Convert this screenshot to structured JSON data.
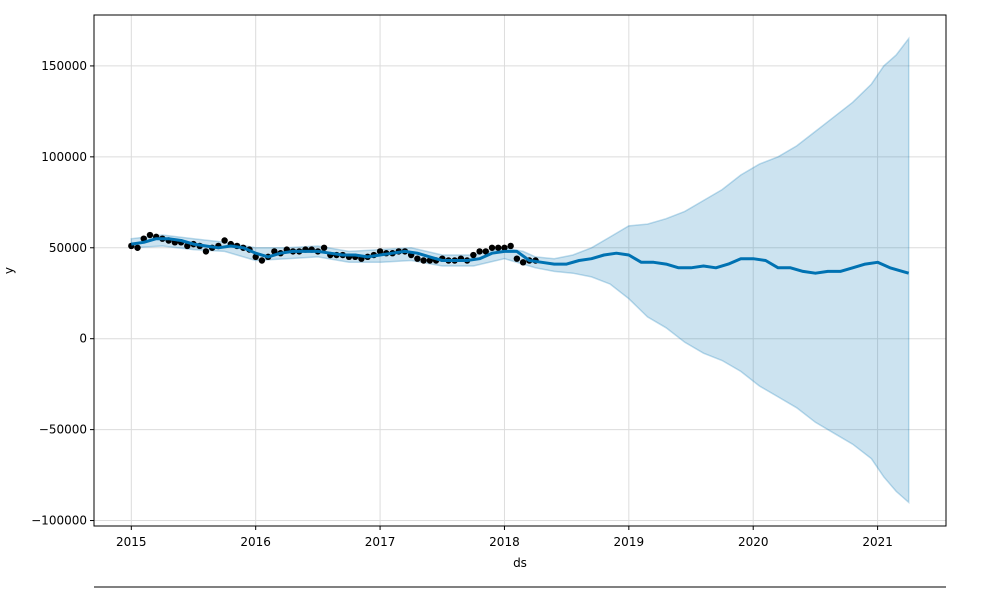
{
  "chart_data": {
    "type": "line",
    "title": "",
    "xlabel": "ds",
    "ylabel": "y",
    "xlim": [
      2014.7,
      2021.55
    ],
    "ylim": [
      -103000,
      178000
    ],
    "grid": true,
    "x_ticks": [
      2015,
      2016,
      2017,
      2018,
      2019,
      2020,
      2021
    ],
    "x_tick_labels": [
      "2015",
      "2016",
      "2017",
      "2018",
      "2019",
      "2020",
      "2021"
    ],
    "y_ticks": [
      -100000,
      -50000,
      0,
      50000,
      100000,
      150000
    ],
    "y_tick_labels": [
      "−100000",
      "−50000",
      "0",
      "50000",
      "100000",
      "150000"
    ],
    "colors": {
      "observed": "#000000",
      "forecast": "#0072B2",
      "interval_fill": "#0072B2",
      "grid": "#dcdcdc"
    },
    "series": [
      {
        "kind": "scatter",
        "x": [
          2015.0,
          2015.05,
          2015.1,
          2015.15,
          2015.2,
          2015.25,
          2015.3,
          2015.35,
          2015.4,
          2015.45,
          2015.5,
          2015.55,
          2015.6,
          2015.65,
          2015.7,
          2015.75,
          2015.8,
          2015.85,
          2015.9,
          2015.95,
          2016.0,
          2016.05,
          2016.1,
          2016.15,
          2016.2,
          2016.25,
          2016.3,
          2016.35,
          2016.4,
          2016.45,
          2016.5,
          2016.55,
          2016.6,
          2016.65,
          2016.7,
          2016.75,
          2016.8,
          2016.85,
          2016.9,
          2016.95,
          2017.0,
          2017.05,
          2017.1,
          2017.15,
          2017.2,
          2017.25,
          2017.3,
          2017.35,
          2017.4,
          2017.45,
          2017.5,
          2017.55,
          2017.6,
          2017.65,
          2017.7,
          2017.75,
          2017.8,
          2017.85,
          2017.9,
          2017.95,
          2018.0,
          2018.05,
          2018.1,
          2018.15,
          2018.2,
          2018.25
        ],
        "y": [
          51000,
          50000,
          55000,
          57000,
          56000,
          55000,
          54000,
          53000,
          53000,
          51000,
          52000,
          51000,
          48000,
          50000,
          51000,
          54000,
          52000,
          51000,
          50000,
          49000,
          45000,
          43000,
          45000,
          48000,
          47000,
          49000,
          48000,
          48000,
          49000,
          49000,
          48000,
          50000,
          46000,
          46000,
          46000,
          45000,
          45000,
          44000,
          45000,
          46000,
          48000,
          47000,
          47000,
          48000,
          48000,
          46000,
          44000,
          43000,
          43000,
          43000,
          44000,
          43000,
          43000,
          44000,
          43000,
          46000,
          48000,
          48000,
          50000,
          50000,
          50000,
          51000,
          44000,
          42000,
          43000,
          43000
        ]
      },
      {
        "kind": "line",
        "x": [
          2015.0,
          2015.1,
          2015.2,
          2015.3,
          2015.4,
          2015.5,
          2015.6,
          2015.7,
          2015.8,
          2015.9,
          2016.0,
          2016.1,
          2016.2,
          2016.3,
          2016.4,
          2016.5,
          2016.6,
          2016.7,
          2016.8,
          2016.9,
          2017.0,
          2017.1,
          2017.2,
          2017.3,
          2017.4,
          2017.5,
          2017.6,
          2017.7,
          2017.8,
          2017.9,
          2018.0,
          2018.1,
          2018.2,
          2018.3,
          2018.4,
          2018.5,
          2018.6,
          2018.7,
          2018.8,
          2018.9,
          2019.0,
          2019.1,
          2019.2,
          2019.3,
          2019.4,
          2019.5,
          2019.6,
          2019.7,
          2019.8,
          2019.9,
          2020.0,
          2020.1,
          2020.2,
          2020.3,
          2020.4,
          2020.5,
          2020.6,
          2020.7,
          2020.8,
          2020.9,
          2021.0,
          2021.1,
          2021.2,
          2021.25
        ],
        "y": [
          52000,
          53000,
          55000,
          55000,
          54000,
          52000,
          51000,
          50000,
          51000,
          50000,
          47000,
          45000,
          47000,
          48000,
          48000,
          48000,
          47000,
          46000,
          46000,
          45000,
          46000,
          47000,
          48000,
          47000,
          45000,
          43000,
          43000,
          43000,
          44000,
          47000,
          48000,
          48000,
          43000,
          42000,
          41000,
          41000,
          43000,
          44000,
          46000,
          47000,
          46000,
          42000,
          42000,
          41000,
          39000,
          39000,
          40000,
          39000,
          41000,
          44000,
          44000,
          43000,
          39000,
          39000,
          37000,
          36000,
          37000,
          37000,
          39000,
          41000,
          42000,
          39000,
          37000,
          36000
        ]
      }
    ],
    "interval": {
      "x": [
        2015.0,
        2015.25,
        2015.5,
        2015.75,
        2016.0,
        2016.25,
        2016.5,
        2016.75,
        2017.0,
        2017.25,
        2017.5,
        2017.75,
        2018.0,
        2018.15,
        2018.25,
        2018.4,
        2018.55,
        2018.7,
        2018.85,
        2019.0,
        2019.15,
        2019.3,
        2019.45,
        2019.6,
        2019.75,
        2019.9,
        2020.05,
        2020.2,
        2020.35,
        2020.5,
        2020.65,
        2020.8,
        2020.95,
        2021.05,
        2021.15,
        2021.25
      ],
      "upper": [
        55000,
        57000,
        55000,
        53000,
        50000,
        50000,
        51000,
        48000,
        49000,
        50000,
        46000,
        46000,
        50000,
        48000,
        45000,
        44000,
        46000,
        50000,
        56000,
        62000,
        63000,
        66000,
        70000,
        76000,
        82000,
        90000,
        96000,
        100000,
        106000,
        114000,
        122000,
        130000,
        140000,
        150000,
        156000,
        165000
      ],
      "lower": [
        50000,
        51000,
        49000,
        48000,
        43000,
        44000,
        45000,
        42000,
        42000,
        43000,
        40000,
        40000,
        44000,
        41000,
        39000,
        37000,
        36000,
        34000,
        30000,
        22000,
        12000,
        6000,
        -2000,
        -8000,
        -12000,
        -18000,
        -26000,
        -32000,
        -38000,
        -46000,
        -52000,
        -58000,
        -66000,
        -76000,
        -84000,
        -90000
      ]
    }
  }
}
